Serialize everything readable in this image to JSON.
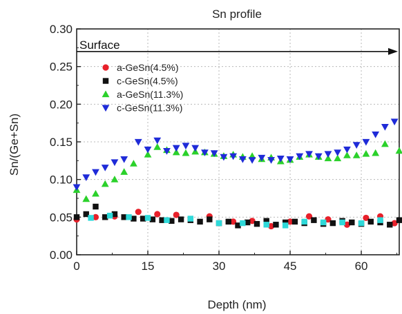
{
  "chart_data": {
    "type": "scatter",
    "title": "Sn profile",
    "xlabel": "Depth (nm)",
    "ylabel": "Sn/(Ge+Sn)",
    "xlim": [
      0,
      68
    ],
    "ylim": [
      0,
      0.3
    ],
    "xticks": [
      "0",
      "15",
      "30",
      "45",
      "60"
    ],
    "yticks": [
      "0.00",
      "0.05",
      "0.10",
      "0.15",
      "0.20",
      "0.25",
      "0.30"
    ],
    "grid": true,
    "legend_position": "upper-left",
    "annotation": {
      "text": "Surface",
      "arrow_from_x": 0,
      "arrow_to_x": 68,
      "y": 0.27
    },
    "series": [
      {
        "name": "a-GeSn(4.5%)",
        "marker": "circle",
        "color": "#e8202a",
        "x": [
          0,
          4,
          8,
          13,
          17,
          21,
          28,
          33,
          37,
          41,
          45,
          49,
          53,
          57,
          61,
          64,
          67
        ],
        "y": [
          0.047,
          0.05,
          0.051,
          0.057,
          0.054,
          0.053,
          0.051,
          0.044,
          0.045,
          0.038,
          0.044,
          0.051,
          0.047,
          0.04,
          0.049,
          0.051,
          0.042
        ]
      },
      {
        "name": "c-GeSn(4.5%)",
        "marker": "square",
        "color": "#111111",
        "x": [
          0,
          2,
          4,
          6,
          8,
          10,
          12,
          14,
          16,
          18,
          20,
          22,
          24,
          26,
          28,
          30,
          32,
          34,
          36,
          38,
          40,
          42,
          44,
          46,
          48,
          50,
          52,
          54,
          56,
          58,
          60,
          62,
          64,
          66,
          68
        ],
        "y": [
          0.05,
          0.054,
          0.064,
          0.05,
          0.054,
          0.05,
          0.048,
          0.048,
          0.047,
          0.046,
          0.045,
          0.047,
          0.046,
          0.044,
          0.047,
          0.042,
          0.044,
          0.039,
          0.043,
          0.041,
          0.045,
          0.04,
          0.043,
          0.044,
          0.042,
          0.046,
          0.041,
          0.042,
          0.045,
          0.043,
          0.041,
          0.044,
          0.043,
          0.04,
          0.046
        ]
      },
      {
        "name": "a-GeSn(11.3%)",
        "marker": "triangle-up",
        "color": "#2bd12b",
        "x": [
          0,
          2,
          4,
          6,
          8,
          10,
          12,
          15,
          17,
          19,
          21,
          23,
          25,
          27,
          29,
          31,
          33,
          35,
          37,
          39,
          41,
          43,
          45,
          47,
          49,
          51,
          53,
          55,
          57,
          59,
          61,
          63,
          65,
          68
        ],
        "y": [
          0.086,
          0.074,
          0.081,
          0.094,
          0.1,
          0.11,
          0.121,
          0.133,
          0.143,
          0.139,
          0.136,
          0.135,
          0.137,
          0.136,
          0.134,
          0.131,
          0.133,
          0.13,
          0.131,
          0.127,
          0.129,
          0.124,
          0.126,
          0.13,
          0.133,
          0.13,
          0.128,
          0.128,
          0.132,
          0.132,
          0.134,
          0.135,
          0.147,
          0.138
        ]
      },
      {
        "name": "c-GeSn(11.3%)",
        "marker": "triangle-down",
        "color": "#1f2bd8",
        "x": [
          0,
          2,
          4,
          6,
          8,
          10,
          13,
          15,
          17,
          19,
          21,
          23,
          25,
          27,
          29,
          31,
          33,
          35,
          37,
          39,
          41,
          43,
          45,
          47,
          49,
          51,
          53,
          55,
          57,
          59,
          61,
          63,
          65,
          67
        ],
        "y": [
          0.09,
          0.103,
          0.11,
          0.116,
          0.123,
          0.127,
          0.15,
          0.14,
          0.152,
          0.138,
          0.142,
          0.145,
          0.142,
          0.136,
          0.135,
          0.13,
          0.131,
          0.127,
          0.126,
          0.129,
          0.126,
          0.128,
          0.127,
          0.131,
          0.134,
          0.131,
          0.134,
          0.136,
          0.14,
          0.146,
          0.15,
          0.16,
          0.17,
          0.177
        ]
      },
      {
        "name": "",
        "marker": "square",
        "color": "#2fd9d9",
        "x": [
          3,
          7,
          11,
          15,
          19,
          24,
          30,
          35,
          40,
          44,
          48,
          52,
          56,
          60,
          64
        ],
        "y": [
          0.049,
          0.052,
          0.05,
          0.049,
          0.046,
          0.048,
          0.042,
          0.042,
          0.04,
          0.039,
          0.044,
          0.043,
          0.043,
          0.042,
          0.046
        ]
      }
    ]
  }
}
